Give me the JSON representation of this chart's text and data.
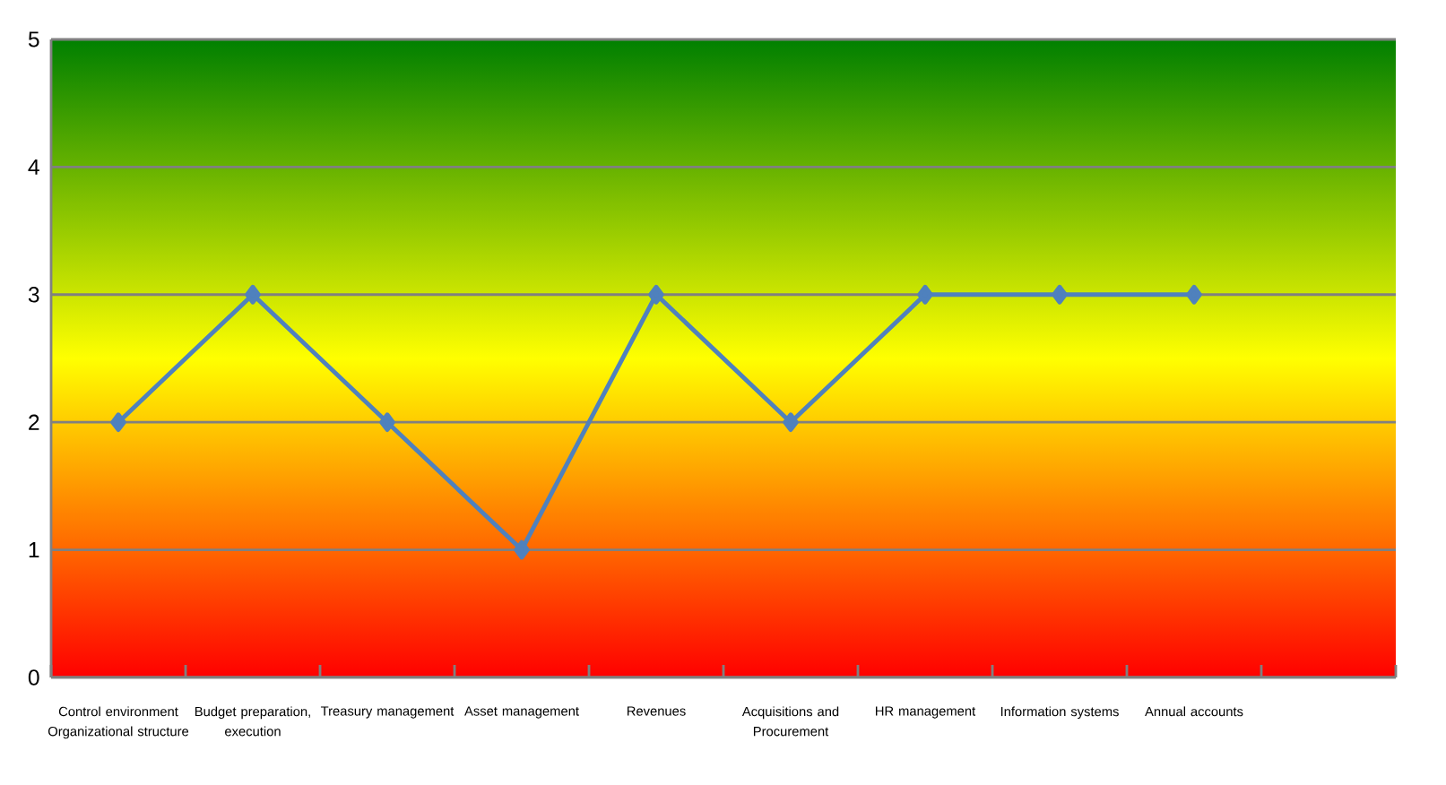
{
  "chart_data": {
    "type": "line",
    "categories": [
      "Control environment Organizational structure",
      "Budget preparation, execution",
      "Treasury management",
      "Asset management",
      "Revenues",
      "Acquisitions  and Procurement",
      "HR management",
      "Information systems",
      "Annual accounts",
      null
    ],
    "series": [
      {
        "color": "#4f81bd",
        "values": [
          2,
          3,
          2,
          1,
          3,
          2,
          3,
          3,
          3,
          null
        ]
      }
    ],
    "ylim": [
      0,
      5
    ],
    "yticks": [
      0,
      1,
      2,
      3,
      4,
      5
    ],
    "grid": "y",
    "marker": "diamond",
    "line_style": "solid"
  }
}
